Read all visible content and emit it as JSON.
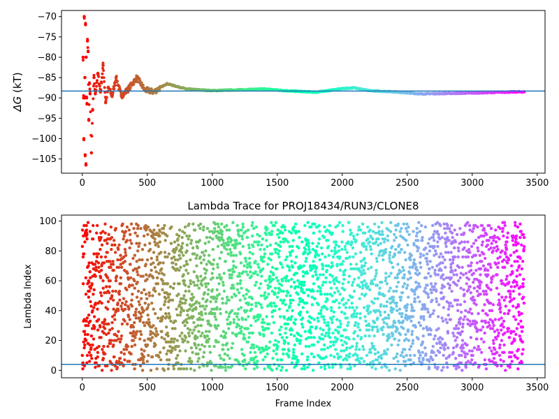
{
  "chart_data": [
    {
      "type": "scatter",
      "title": "",
      "xlabel": "",
      "ylabel_symbol": "ΔG",
      "ylabel_unit": " (kT)",
      "xlim": [
        -160,
        3560
      ],
      "ylim": [
        -108.5,
        -68.5
      ],
      "xticks": [
        0,
        500,
        1000,
        1500,
        2000,
        2500,
        3000,
        3500
      ],
      "yticks": [
        -105,
        -100,
        -95,
        -90,
        -85,
        -80,
        -75,
        -70
      ],
      "hline": -88.3,
      "hline_color": "#1f77b4",
      "colormap": "rainbow",
      "frame_range": [
        0,
        3400
      ],
      "grid": false,
      "points": [
        [
          6,
          -80
        ],
        [
          10,
          -90
        ],
        [
          12,
          -100
        ],
        [
          15,
          -70
        ],
        [
          18,
          -90
        ],
        [
          20,
          -85
        ],
        [
          22,
          -104
        ],
        [
          25,
          -72
        ],
        [
          28,
          -106.5
        ],
        [
          30,
          -80
        ],
        [
          33,
          -90
        ],
        [
          36,
          -91.5
        ],
        [
          40,
          -76
        ],
        [
          45,
          -78.5
        ],
        [
          50,
          -95.5
        ],
        [
          55,
          -86.5
        ],
        [
          60,
          -89
        ],
        [
          70,
          -103.5
        ],
        [
          80,
          -93
        ],
        [
          90,
          -85
        ],
        [
          100,
          -89
        ],
        [
          120,
          -84
        ],
        [
          140,
          -88.5
        ],
        [
          160,
          -82
        ],
        [
          180,
          -91
        ],
        [
          200,
          -87.5
        ],
        [
          230,
          -89.5
        ],
        [
          260,
          -85
        ],
        [
          300,
          -89.5
        ],
        [
          350,
          -88
        ],
        [
          420,
          -85
        ],
        [
          480,
          -88
        ],
        [
          550,
          -88.5
        ],
        [
          650,
          -86.5
        ],
        [
          800,
          -87.8
        ],
        [
          1000,
          -88.2
        ],
        [
          1200,
          -88
        ],
        [
          1400,
          -87.8
        ],
        [
          1600,
          -88.3
        ],
        [
          1800,
          -88.6
        ],
        [
          2000,
          -87.7
        ],
        [
          2100,
          -87.5
        ],
        [
          2200,
          -88.2
        ],
        [
          2400,
          -88.5
        ],
        [
          2600,
          -89
        ],
        [
          2800,
          -88.9
        ],
        [
          3000,
          -88.8
        ],
        [
          3200,
          -88.6
        ],
        [
          3400,
          -88.5
        ]
      ]
    },
    {
      "type": "scatter",
      "title": "Lambda Trace for PROJ18434/RUN3/CLONE8",
      "xlabel": "Frame Index",
      "ylabel": "Lambda Index",
      "xlim": [
        -160,
        3560
      ],
      "ylim": [
        -5,
        104
      ],
      "xticks": [
        0,
        500,
        1000,
        1500,
        2000,
        2500,
        3000,
        3500
      ],
      "yticks": [
        0,
        20,
        40,
        60,
        80,
        100
      ],
      "hline": 4,
      "hline_color": "#1f77b4",
      "colormap": "rainbow",
      "frame_range": [
        0,
        3400
      ],
      "n_points": 3400,
      "y_range": [
        0,
        99
      ],
      "grid": false
    }
  ]
}
